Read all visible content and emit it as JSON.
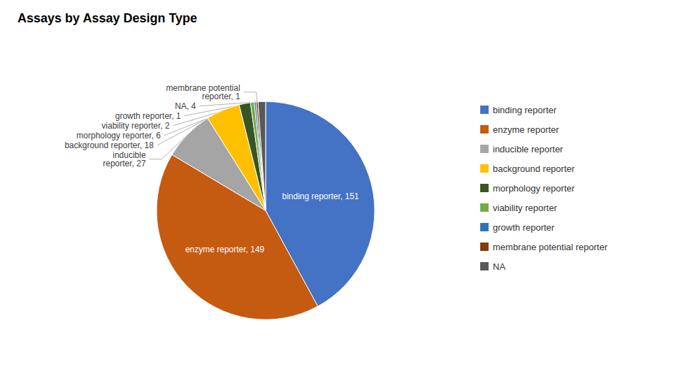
{
  "chart_data": {
    "type": "pie",
    "title": "Assays by Assay Design Type",
    "categories": [
      "binding reporter",
      "enzyme reporter",
      "inducible reporter",
      "background reporter",
      "morphology reporter",
      "viability reporter",
      "growth reporter",
      "membrane potential reporter",
      "NA"
    ],
    "values": [
      151,
      149,
      27,
      18,
      6,
      2,
      1,
      1,
      4
    ],
    "colors": [
      "#4472C4",
      "#C55A11",
      "#A5A5A5",
      "#FFC000",
      "#375623",
      "#70AD47",
      "#2E75B6",
      "#843C0C",
      "#595959"
    ],
    "data_labels": true,
    "value_labels": [
      "binding reporter, 151",
      "enzyme reporter, 149",
      "inducible\nreporter, 27",
      "background reporter, 18",
      "morphology reporter, 6",
      "viability reporter, 2",
      "growth reporter, 1",
      "membrane potential\nreporter, 1",
      "NA, 4"
    ],
    "legend": "right"
  }
}
